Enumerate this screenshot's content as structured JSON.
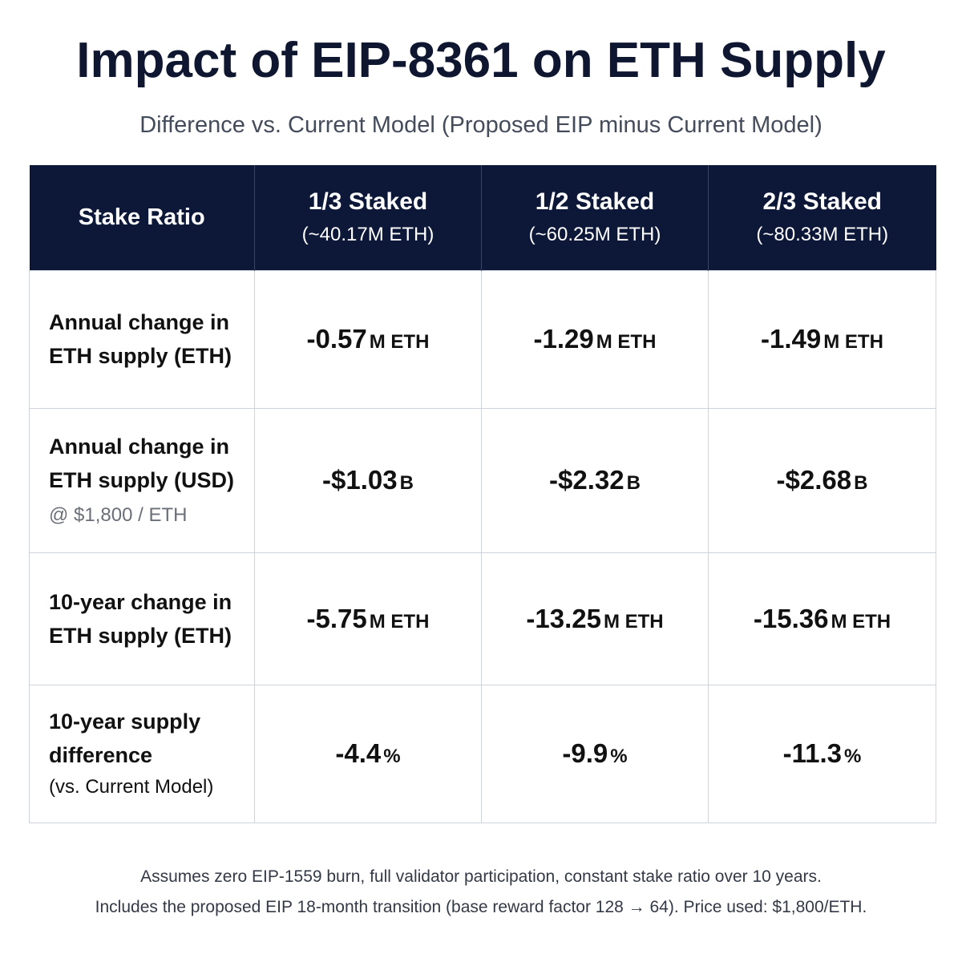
{
  "title": "Impact of EIP-8361 on ETH Supply",
  "subtitle": "Difference vs. Current Model (Proposed EIP minus Current Model)",
  "chart_data": {
    "type": "table",
    "title": "Impact of EIP-8361 on ETH Supply",
    "subtitle": "Difference vs. Current Model (Proposed EIP minus Current Model)",
    "header": {
      "corner": "Stake Ratio",
      "columns": [
        {
          "label": "1/3 Staked",
          "sub": "(~40.17M ETH)"
        },
        {
          "label": "1/2 Staked",
          "sub": "(~60.25M ETH)"
        },
        {
          "label": "2/3 Staked",
          "sub": "(~80.33M ETH)"
        }
      ]
    },
    "rows": [
      {
        "label": "Annual change in ETH supply (ETH)",
        "note": "",
        "cells": [
          {
            "num": "-0.57",
            "unit": "M ETH"
          },
          {
            "num": "-1.29",
            "unit": "M ETH"
          },
          {
            "num": "-1.49",
            "unit": "M ETH"
          }
        ]
      },
      {
        "label": "Annual change in ETH supply (USD)",
        "note": "@ $1,800 / ETH",
        "cells": [
          {
            "num": "-$1.03",
            "unit": "B"
          },
          {
            "num": "-$2.32",
            "unit": "B"
          },
          {
            "num": "-$2.68",
            "unit": "B"
          }
        ]
      },
      {
        "label": "10-year change in ETH supply (ETH)",
        "note": "",
        "cells": [
          {
            "num": "-5.75",
            "unit": "M ETH"
          },
          {
            "num": "-13.25",
            "unit": "M ETH"
          },
          {
            "num": "-15.36",
            "unit": "M ETH"
          }
        ]
      },
      {
        "label": "10-year supply difference",
        "note": "(vs. Current Model)",
        "cells": [
          {
            "num": "-4.4",
            "unit": "%"
          },
          {
            "num": "-9.9",
            "unit": "%"
          },
          {
            "num": "-11.3",
            "unit": "%"
          }
        ]
      }
    ]
  },
  "footnotes": [
    "Assumes zero EIP-1559 burn, full validator participation, constant stake ratio over 10 years.",
    "Includes the proposed EIP 18-month transition (base reward factor 128 → 64). Price used: $1,800/ETH."
  ],
  "colors": {
    "header_bg": "#0d1838",
    "header_text": "#ffffff",
    "title": "#0e1630",
    "grid_border": "#cfd4dc"
  }
}
